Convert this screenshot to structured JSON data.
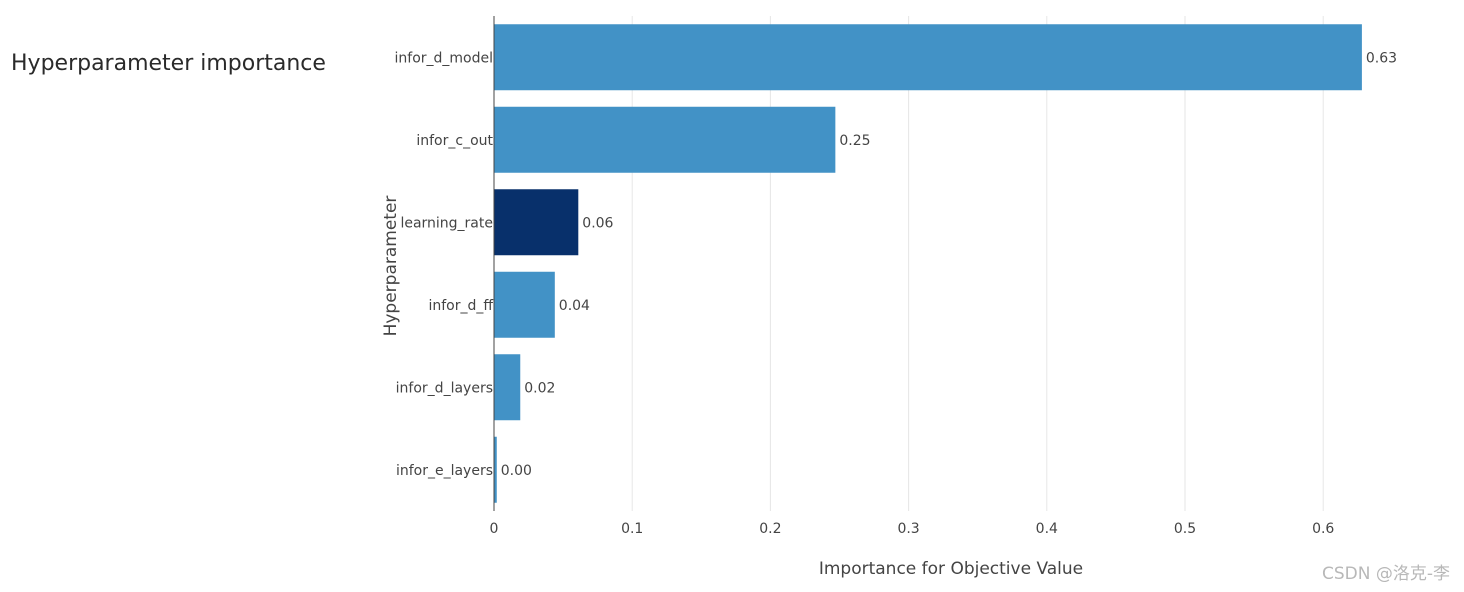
{
  "chart_data": {
    "type": "bar",
    "orientation": "horizontal",
    "title": "Hyperparameter importance",
    "xlabel": "Importance for Objective Value",
    "ylabel": "Hyperparameter",
    "xlim": [
      0,
      0.65
    ],
    "xticks": [
      0,
      0.1,
      0.2,
      0.3,
      0.4,
      0.5,
      0.6
    ],
    "xtick_labels": [
      "0",
      "0.1",
      "0.2",
      "0.3",
      "0.4",
      "0.5",
      "0.6"
    ],
    "grid": true,
    "categories": [
      "infor_d_model",
      "infor_c_out",
      "learning_rate",
      "infor_d_ff",
      "infor_d_layers",
      "infor_e_layers"
    ],
    "values": [
      0.628,
      0.247,
      0.061,
      0.044,
      0.019,
      0.002
    ],
    "value_labels": [
      "0.63",
      "0.25",
      "0.06",
      "0.04",
      "0.02",
      "0.00"
    ],
    "bar_colors": [
      "#4292c6",
      "#4292c6",
      "#08306b",
      "#4292c6",
      "#4292c6",
      "#4292c6"
    ]
  },
  "watermark": "CSDN @洛克-李"
}
